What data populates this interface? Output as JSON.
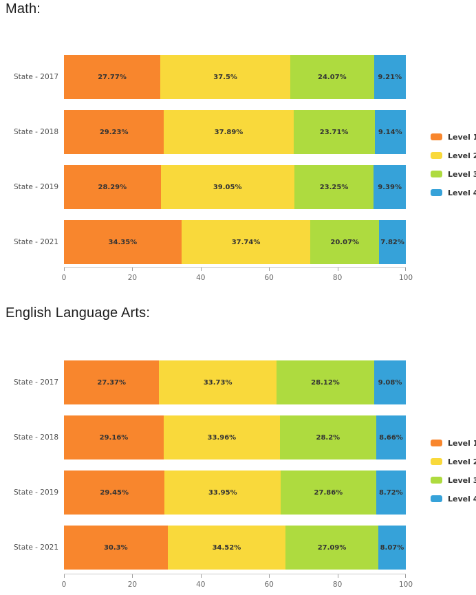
{
  "chart_data": [
    {
      "type": "bar",
      "orientation": "horizontal",
      "stacked": true,
      "normalized": true,
      "title": "Math:",
      "categories": [
        "State - 2017",
        "State - 2018",
        "State - 2019",
        "State - 2021"
      ],
      "series": [
        {
          "name": "Level 1",
          "color": "#F8862D",
          "values": [
            27.77,
            29.23,
            28.29,
            34.35
          ]
        },
        {
          "name": "Level 2",
          "color": "#F9D93B",
          "values": [
            37.5,
            37.89,
            39.05,
            37.74
          ]
        },
        {
          "name": "Level 3",
          "color": "#AEDB3F",
          "values": [
            24.07,
            23.71,
            23.25,
            20.07
          ]
        },
        {
          "name": "Level 4",
          "color": "#36A2D9",
          "values": [
            9.21,
            9.14,
            9.39,
            7.82
          ]
        }
      ],
      "value_suffix": "%",
      "xlabel": "",
      "ylabel": "",
      "xlim": [
        0,
        100
      ],
      "x_ticks": [
        0,
        20,
        40,
        60,
        80,
        100
      ],
      "grid": false,
      "legend_position": "right"
    },
    {
      "type": "bar",
      "orientation": "horizontal",
      "stacked": true,
      "normalized": true,
      "title": "English Language Arts:",
      "categories": [
        "State - 2017",
        "State - 2018",
        "State - 2019",
        "State - 2021"
      ],
      "series": [
        {
          "name": "Level 1",
          "color": "#F8862D",
          "values": [
            27.37,
            29.16,
            29.45,
            30.3
          ]
        },
        {
          "name": "Level 2",
          "color": "#F9D93B",
          "values": [
            33.73,
            33.96,
            33.95,
            34.52
          ]
        },
        {
          "name": "Level 3",
          "color": "#AEDB3F",
          "values": [
            28.12,
            28.2,
            27.86,
            27.09
          ]
        },
        {
          "name": "Level 4",
          "color": "#36A2D9",
          "values": [
            9.08,
            8.66,
            8.72,
            8.07
          ]
        }
      ],
      "value_suffix": "%",
      "xlabel": "",
      "ylabel": "",
      "xlim": [
        0,
        100
      ],
      "x_ticks": [
        0,
        20,
        40,
        60,
        80,
        100
      ],
      "grid": false,
      "legend_position": "right"
    }
  ]
}
